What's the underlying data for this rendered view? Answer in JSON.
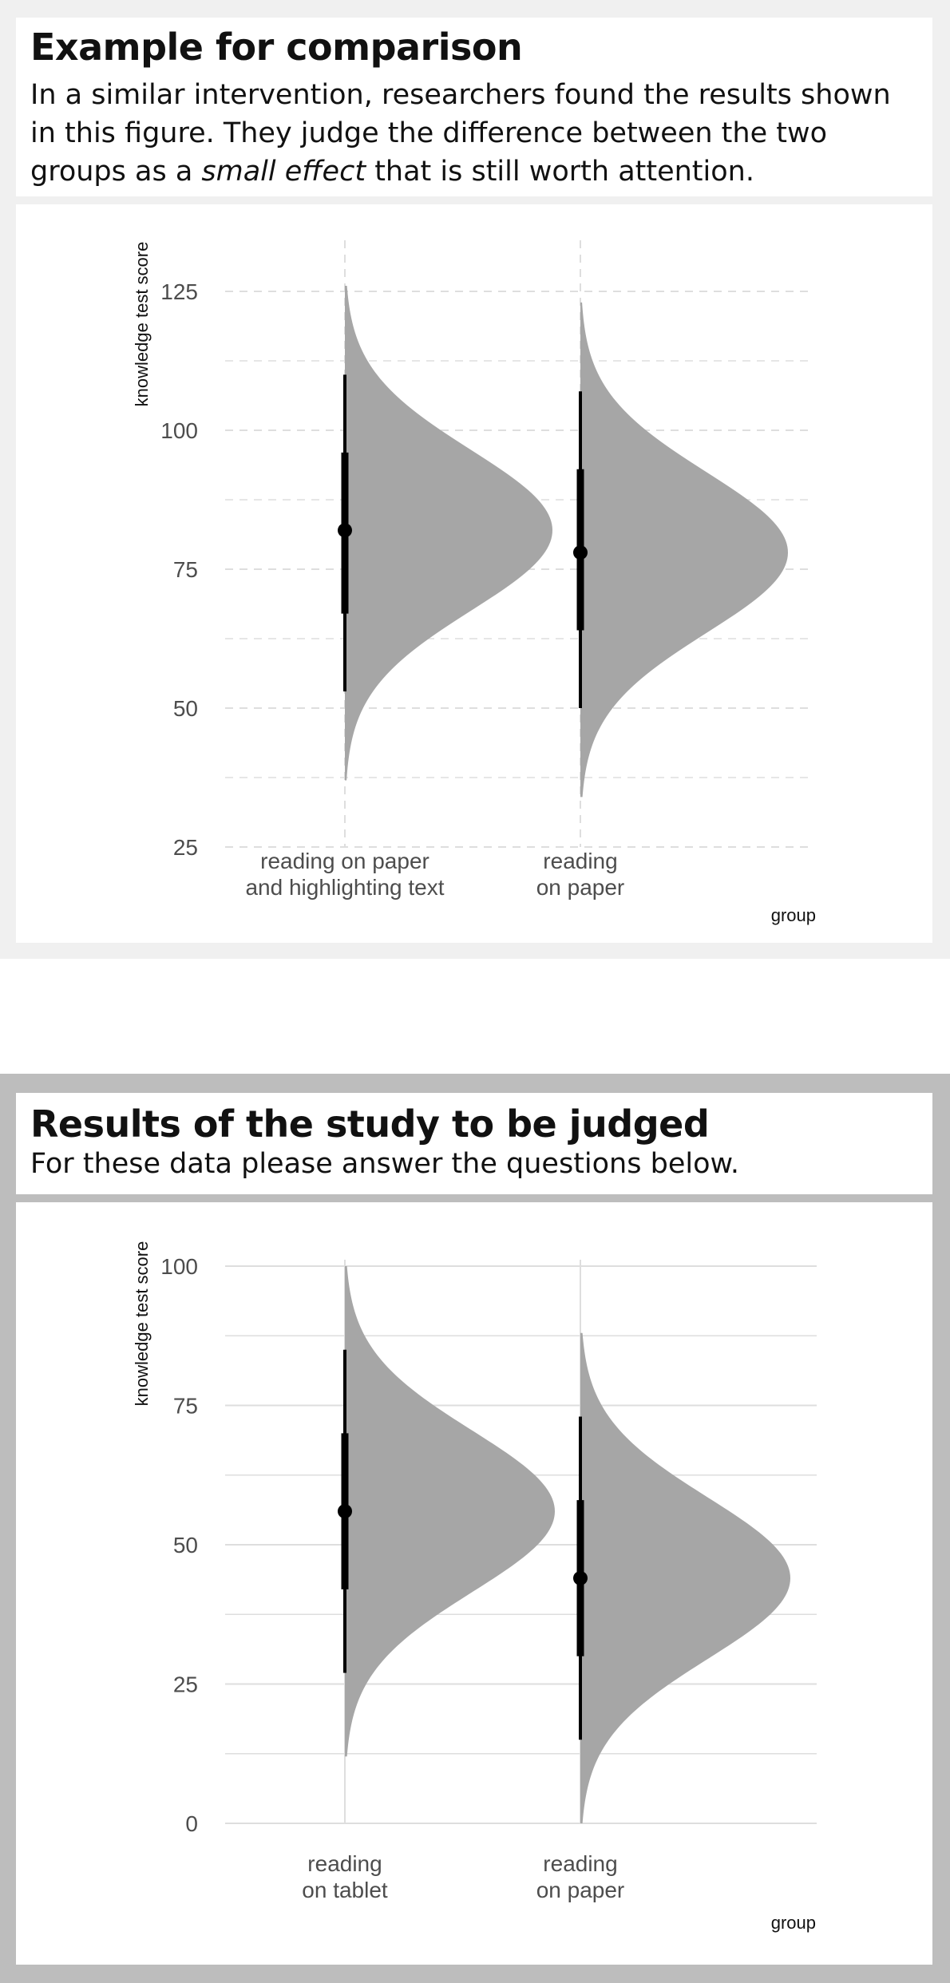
{
  "panel1": {
    "title": "Example for comparison",
    "subtitle_a": "In a similar intervention, researchers found the results shown in this figure. They judge the difference between the two groups as a ",
    "subtitle_em": "small effect",
    "subtitle_b": " that is still worth attention."
  },
  "panel2": {
    "title": "Results of the study to be judged",
    "subtitle": "For these data please answer the questions below."
  },
  "colors": {
    "violin": "#a6a6a6",
    "interval": "#000000",
    "grid": "#dedede",
    "panel1_bg": "#f0f0f0",
    "panel2_bg": "#bdbdbd"
  },
  "chart_data": [
    {
      "type": "half-violin",
      "xlabel": "group",
      "ylabel": "knowledge test score",
      "ylim": [
        25,
        135
      ],
      "yticks": [
        25,
        50,
        75,
        100,
        125
      ],
      "grid": "dashed",
      "categories": [
        "reading on paper\nand highlighting text",
        "reading\non paper"
      ],
      "groups": [
        {
          "mean": 82,
          "sd": 14.5,
          "min": 37,
          "max": 126,
          "interval_66": [
            67,
            96
          ],
          "interval_95": [
            53,
            110
          ]
        },
        {
          "mean": 78,
          "sd": 14.5,
          "min": 34,
          "max": 123,
          "interval_66": [
            64,
            93
          ],
          "interval_95": [
            50,
            107
          ]
        }
      ]
    },
    {
      "type": "half-violin",
      "xlabel": "group",
      "ylabel": "knowledge test score",
      "ylim": [
        -2,
        105
      ],
      "yticks": [
        0,
        25,
        50,
        75,
        100
      ],
      "grid": "solid",
      "categories": [
        "reading\non tablet",
        "reading\non paper"
      ],
      "groups": [
        {
          "mean": 56,
          "sd": 14.5,
          "min": 12,
          "max": 100,
          "interval_66": [
            42,
            70
          ],
          "interval_95": [
            27,
            85
          ]
        },
        {
          "mean": 44,
          "sd": 14.5,
          "min": 0,
          "max": 88,
          "interval_66": [
            30,
            58
          ],
          "interval_95": [
            15,
            73
          ]
        }
      ]
    }
  ]
}
